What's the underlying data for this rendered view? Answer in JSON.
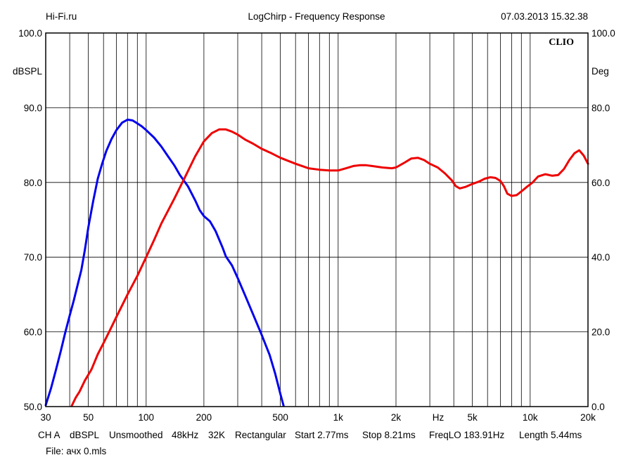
{
  "header": {
    "site": "Hi-Fi.ru",
    "title": "LogChirp - Frequency Response",
    "datetime": "07.03.2013 15.32.38"
  },
  "brand": "CLIO",
  "footer": {
    "settings": [
      "CH A",
      "dBSPL",
      "Unsmoothed",
      "48kHz",
      "32K",
      "Rectangular",
      "Start 2.77ms",
      "Stop 8.21ms",
      "FreqLO 183.91Hz",
      "Length 5.44ms"
    ],
    "file": "File: ачх 0.mls"
  },
  "chart_data": {
    "type": "line",
    "xscale": "log",
    "xlim": [
      30,
      20000
    ],
    "ylim": [
      50,
      100
    ],
    "y2lim": [
      0,
      100
    ],
    "ylabel": "dBSPL",
    "y2label": "Deg",
    "xunit": "Hz",
    "grid": true,
    "xticks": [
      {
        "value": 30,
        "label": "30"
      },
      {
        "value": 50,
        "label": "50"
      },
      {
        "value": 100,
        "label": "100"
      },
      {
        "value": 200,
        "label": "200"
      },
      {
        "value": 500,
        "label": "500"
      },
      {
        "value": 1000,
        "label": "1k"
      },
      {
        "value": 2000,
        "label": "2k"
      },
      {
        "value": 5000,
        "label": "5k"
      },
      {
        "value": 10000,
        "label": "10k"
      },
      {
        "value": 20000,
        "label": "20k"
      }
    ],
    "yticks": [
      "50.0",
      "60.0",
      "70.0",
      "80.0",
      "90.0",
      "100.0"
    ],
    "y2ticks": [
      "0.0",
      "20.0",
      "40.0",
      "60.0",
      "80.0",
      "100.0"
    ],
    "series": [
      {
        "color": "#0000ee",
        "points": [
          [
            30,
            50.2
          ],
          [
            32,
            52.5
          ],
          [
            34,
            55
          ],
          [
            36,
            57.5
          ],
          [
            38,
            60
          ],
          [
            40,
            62.2
          ],
          [
            42,
            64.2
          ],
          [
            44,
            66.3
          ],
          [
            46,
            68.3
          ],
          [
            48,
            71
          ],
          [
            50,
            74
          ],
          [
            53,
            77.5
          ],
          [
            56,
            80.5
          ],
          [
            59,
            82.5
          ],
          [
            62,
            84.2
          ],
          [
            66,
            85.8
          ],
          [
            70,
            87
          ],
          [
            75,
            88
          ],
          [
            80,
            88.4
          ],
          [
            85,
            88.3
          ],
          [
            90,
            87.9
          ],
          [
            95,
            87.5
          ],
          [
            100,
            87
          ],
          [
            110,
            86
          ],
          [
            120,
            84.8
          ],
          [
            130,
            83.5
          ],
          [
            140,
            82.3
          ],
          [
            150,
            81
          ],
          [
            165,
            79.5
          ],
          [
            180,
            77.6
          ],
          [
            190,
            76.3
          ],
          [
            200,
            75.5
          ],
          [
            215,
            74.8
          ],
          [
            230,
            73.5
          ],
          [
            250,
            71.3
          ],
          [
            260,
            70.1
          ],
          [
            280,
            68.9
          ],
          [
            300,
            67.2
          ],
          [
            330,
            64.7
          ],
          [
            360,
            62.4
          ],
          [
            400,
            59.6
          ],
          [
            440,
            56.9
          ],
          [
            470,
            54.4
          ],
          [
            500,
            51.7
          ],
          [
            520,
            50.1
          ]
        ]
      },
      {
        "color": "#ee0000",
        "points": [
          [
            41,
            50.1
          ],
          [
            43,
            51.2
          ],
          [
            45,
            52
          ],
          [
            48,
            53.5
          ],
          [
            52,
            55
          ],
          [
            56,
            57
          ],
          [
            60,
            58.5
          ],
          [
            65,
            60.3
          ],
          [
            70,
            62
          ],
          [
            80,
            65
          ],
          [
            90,
            67.5
          ],
          [
            100,
            70
          ],
          [
            110,
            72.3
          ],
          [
            120,
            74.5
          ],
          [
            140,
            77.8
          ],
          [
            160,
            80.8
          ],
          [
            180,
            83.5
          ],
          [
            200,
            85.5
          ],
          [
            220,
            86.6
          ],
          [
            240,
            87.1
          ],
          [
            260,
            87.1
          ],
          [
            280,
            86.8
          ],
          [
            300,
            86.4
          ],
          [
            330,
            85.7
          ],
          [
            360,
            85.2
          ],
          [
            400,
            84.5
          ],
          [
            450,
            83.9
          ],
          [
            500,
            83.3
          ],
          [
            600,
            82.5
          ],
          [
            700,
            81.9
          ],
          [
            800,
            81.7
          ],
          [
            900,
            81.6
          ],
          [
            1000,
            81.6
          ],
          [
            1100,
            81.9
          ],
          [
            1200,
            82.2
          ],
          [
            1300,
            82.3
          ],
          [
            1400,
            82.3
          ],
          [
            1500,
            82.2
          ],
          [
            1700,
            82.0
          ],
          [
            1900,
            81.9
          ],
          [
            2000,
            82.0
          ],
          [
            2200,
            82.6
          ],
          [
            2400,
            83.2
          ],
          [
            2600,
            83.3
          ],
          [
            2800,
            83.0
          ],
          [
            3000,
            82.5
          ],
          [
            3300,
            82
          ],
          [
            3600,
            81.2
          ],
          [
            3900,
            80.3
          ],
          [
            4100,
            79.5
          ],
          [
            4300,
            79.2
          ],
          [
            4600,
            79.4
          ],
          [
            5000,
            79.8
          ],
          [
            5400,
            80.1
          ],
          [
            5800,
            80.5
          ],
          [
            6200,
            80.7
          ],
          [
            6600,
            80.6
          ],
          [
            7000,
            80.2
          ],
          [
            7300,
            79.5
          ],
          [
            7600,
            78.5
          ],
          [
            8000,
            78.2
          ],
          [
            8500,
            78.3
          ],
          [
            9000,
            78.8
          ],
          [
            9600,
            79.4
          ],
          [
            10300,
            80
          ],
          [
            11000,
            80.8
          ],
          [
            12000,
            81.1
          ],
          [
            13000,
            80.9
          ],
          [
            14000,
            81.0
          ],
          [
            15000,
            81.8
          ],
          [
            16000,
            83.0
          ],
          [
            17000,
            83.9
          ],
          [
            18000,
            84.3
          ],
          [
            19000,
            83.6
          ],
          [
            20000,
            82.5
          ]
        ]
      }
    ]
  }
}
